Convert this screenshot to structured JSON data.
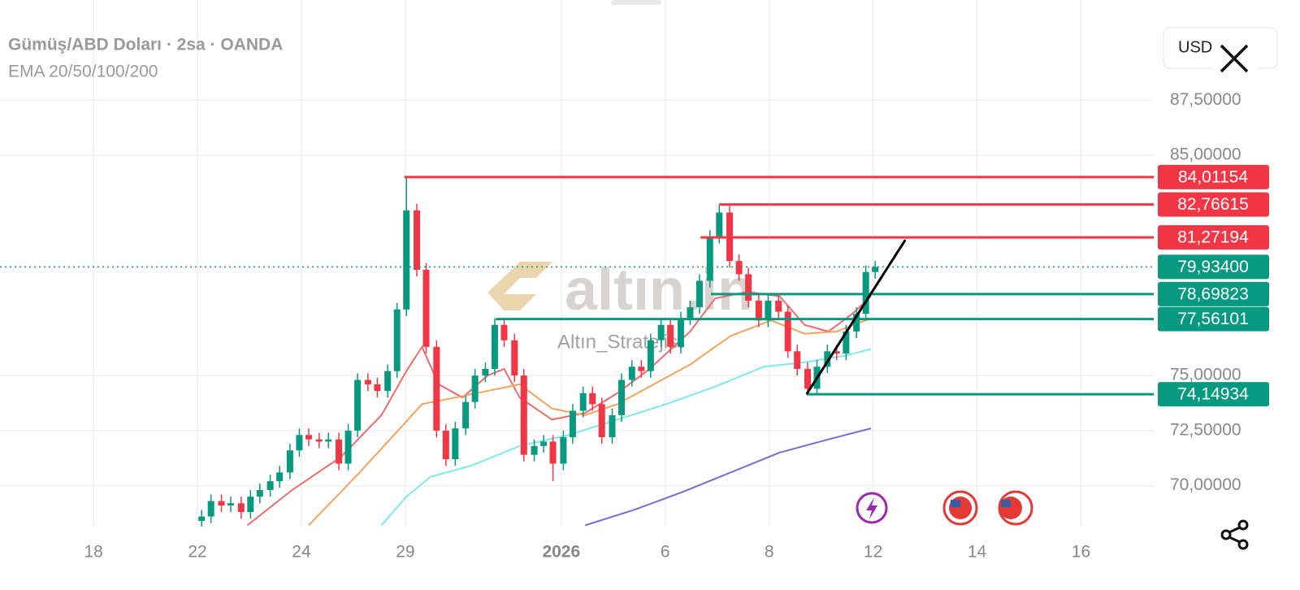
{
  "header": {
    "title": "Gümüş/ABD Doları · 2sa · OANDA",
    "indicators": "EMA 20/50/100/200",
    "currency_button": "USD"
  },
  "watermark": {
    "brand": "altın.in",
    "author": "Altın_Stratejist"
  },
  "chart_data": {
    "type": "candlestick",
    "xlim": [
      -0.9,
      10.2
    ],
    "ylim": [
      68.14,
      92.05
    ],
    "xticks": [
      {
        "value": 0,
        "label": "18"
      },
      {
        "value": 1,
        "label": "22"
      },
      {
        "value": 2,
        "label": "24"
      },
      {
        "value": 3,
        "label": "29"
      },
      {
        "value": 4.5,
        "label": "2026"
      },
      {
        "value": 5.5,
        "label": "6"
      },
      {
        "value": 6.5,
        "label": "8"
      },
      {
        "value": 7.5,
        "label": "12"
      },
      {
        "value": 8.5,
        "label": "14"
      },
      {
        "value": 9.5,
        "label": "16"
      }
    ],
    "yticks": [
      {
        "value": 70,
        "label": "70,00000"
      },
      {
        "value": 72.5,
        "label": "72,50000"
      },
      {
        "value": 75,
        "label": "75,00000"
      },
      {
        "value": 85,
        "label": "85,00000"
      },
      {
        "value": 87.5,
        "label": "87,50000"
      }
    ],
    "grid": true,
    "up_color": "#089981",
    "down_color": "#f23645",
    "x": [
      1.04,
      1.13,
      1.23,
      1.32,
      1.42,
      1.51,
      1.6,
      1.7,
      1.79,
      1.89,
      1.98,
      2.07,
      2.17,
      2.26,
      2.36,
      2.45,
      2.54,
      2.64,
      2.73,
      2.83,
      2.92,
      3.01,
      3.11,
      3.2,
      3.3,
      3.39,
      3.48,
      3.58,
      3.67,
      3.77,
      3.86,
      3.95,
      4.05,
      4.14,
      4.24,
      4.33,
      4.42,
      4.52,
      4.61,
      4.71,
      4.8,
      4.89,
      4.99,
      5.08,
      5.18,
      5.27,
      5.36,
      5.46,
      5.55,
      5.65,
      5.74,
      5.83,
      5.93,
      6.02,
      6.12,
      6.21,
      6.3,
      6.4,
      6.49,
      6.59,
      6.68,
      6.77,
      6.87,
      6.96,
      7.06,
      7.15,
      7.24,
      7.34,
      7.43,
      7.52
    ],
    "open": [
      68.4,
      68.6,
      69.3,
      69.1,
      69.2,
      68.8,
      69.5,
      69.8,
      70.2,
      70.6,
      71.6,
      72.3,
      72.1,
      72.0,
      72.1,
      71.0,
      72.5,
      74.8,
      74.6,
      74.3,
      75.2,
      78.0,
      82.5,
      79.8,
      76.3,
      72.5,
      71.2,
      72.6,
      73.8,
      75.0,
      75.3,
      77.3,
      76.6,
      75.0,
      71.4,
      71.8,
      72.0,
      71.0,
      72.2,
      73.4,
      74.2,
      73.7,
      72.2,
      73.2,
      74.8,
      75.4,
      75.2,
      76.6,
      77.3,
      76.3,
      77.6,
      78.1,
      79.3,
      81.3,
      82.4,
      80.2,
      79.6,
      78.4,
      77.5,
      78.4,
      77.9,
      76.1,
      75.3,
      74.4,
      75.4,
      76.1,
      76.0,
      77.0,
      77.8,
      79.7
    ],
    "high": [
      68.9,
      69.6,
      69.6,
      69.5,
      69.5,
      69.8,
      70.1,
      70.5,
      70.9,
      71.9,
      72.6,
      72.6,
      72.4,
      72.4,
      72.4,
      72.8,
      75.1,
      75.1,
      74.9,
      75.5,
      78.3,
      84.01,
      82.8,
      80.1,
      76.6,
      72.8,
      72.9,
      74.1,
      75.3,
      75.6,
      77.6,
      77.6,
      76.9,
      75.3,
      72.1,
      72.3,
      72.3,
      72.5,
      73.7,
      74.5,
      74.5,
      74.0,
      73.5,
      75.1,
      75.7,
      75.7,
      76.9,
      77.6,
      77.6,
      77.9,
      78.4,
      79.6,
      81.6,
      82.77,
      82.7,
      80.5,
      79.9,
      78.7,
      78.7,
      78.7,
      78.2,
      76.4,
      75.6,
      75.7,
      76.4,
      76.4,
      77.3,
      78.1,
      80.0,
      80.2
    ],
    "low": [
      68.1,
      68.3,
      68.8,
      68.8,
      68.5,
      68.5,
      69.2,
      69.5,
      69.9,
      70.3,
      71.3,
      71.8,
      71.7,
      71.7,
      70.7,
      70.7,
      72.2,
      74.3,
      74.0,
      74.0,
      74.9,
      77.7,
      79.5,
      76.0,
      72.2,
      70.9,
      70.9,
      72.3,
      73.5,
      74.7,
      75.0,
      76.3,
      74.7,
      71.1,
      71.1,
      71.5,
      70.2,
      70.7,
      71.9,
      73.1,
      73.4,
      71.9,
      71.9,
      72.9,
      74.5,
      74.9,
      74.9,
      76.3,
      76.0,
      76.0,
      77.3,
      77.8,
      79.0,
      81.0,
      79.9,
      79.3,
      78.1,
      77.2,
      77.2,
      77.6,
      75.8,
      75.0,
      74.15,
      74.2,
      75.1,
      75.7,
      75.7,
      76.7,
      77.5,
      79.4
    ],
    "close": [
      68.6,
      69.3,
      69.1,
      69.2,
      68.8,
      69.5,
      69.8,
      70.2,
      70.6,
      71.6,
      72.3,
      72.1,
      72.0,
      72.1,
      71.0,
      72.5,
      74.8,
      74.6,
      74.3,
      75.2,
      78.0,
      82.5,
      79.8,
      76.3,
      72.5,
      71.2,
      72.6,
      73.8,
      75.0,
      75.3,
      77.3,
      76.6,
      75.0,
      71.4,
      71.8,
      72.0,
      71.0,
      72.2,
      73.4,
      74.2,
      73.7,
      72.2,
      73.2,
      74.8,
      75.4,
      75.2,
      76.6,
      77.3,
      76.3,
      77.6,
      78.1,
      79.3,
      81.3,
      82.4,
      80.2,
      79.6,
      78.4,
      77.5,
      78.4,
      77.9,
      76.1,
      75.3,
      74.4,
      75.4,
      76.1,
      76.0,
      77.0,
      77.8,
      79.7,
      79.93
    ],
    "lines": [
      {
        "color": "#ef6c6c",
        "x": [
          1.48,
          1.91,
          2.38,
          2.77,
          3.01,
          3.16,
          3.32,
          3.55,
          3.79,
          3.95,
          4.1,
          4.41,
          4.73,
          5.04,
          5.35,
          5.74,
          5.98,
          6.29,
          6.6,
          6.84,
          7.07,
          7.3,
          7.48
        ],
        "values": [
          68.2,
          69.8,
          71.3,
          73.2,
          75.2,
          76.3,
          74.6,
          74.0,
          75.0,
          75.3,
          74.0,
          73.0,
          73.3,
          74.2,
          75.3,
          77.0,
          78.5,
          78.8,
          78.6,
          77.3,
          77.0,
          77.8,
          78.6
        ]
      },
      {
        "color": "#f5a35c",
        "x": [
          2.07,
          2.54,
          2.93,
          3.16,
          3.48,
          3.79,
          4.1,
          4.41,
          4.73,
          5.04,
          5.35,
          5.74,
          6.13,
          6.52,
          6.84,
          7.15,
          7.48
        ],
        "values": [
          68.2,
          70.5,
          72.5,
          73.7,
          74.0,
          74.3,
          74.6,
          73.5,
          73.2,
          73.7,
          74.5,
          75.5,
          76.8,
          77.5,
          76.9,
          77.0,
          77.6
        ]
      },
      {
        "color": "#7ee8f0",
        "x": [
          2.77,
          3.01,
          3.24,
          3.63,
          4.1,
          4.57,
          5.04,
          5.51,
          5.98,
          6.45,
          6.84,
          7.23,
          7.48
        ],
        "values": [
          68.2,
          69.5,
          70.4,
          70.9,
          71.8,
          72.3,
          73.0,
          73.7,
          74.5,
          75.4,
          75.6,
          75.9,
          76.2
        ]
      },
      {
        "color": "#7b6bd8",
        "x": [
          4.73,
          5.2,
          5.66,
          6.13,
          6.6,
          7.07,
          7.48
        ],
        "values": [
          68.2,
          68.9,
          69.7,
          70.6,
          71.5,
          72.1,
          72.6
        ]
      }
    ],
    "levels": [
      {
        "value": 84.01154,
        "label": "84,01154",
        "color": "#f23645",
        "start": 2.99
      },
      {
        "value": 82.76615,
        "label": "82,76615",
        "color": "#f23645",
        "start": 6.02
      },
      {
        "value": 81.27194,
        "label": "81,27194",
        "color": "#f23645",
        "start": 5.84
      },
      {
        "value": 79.934,
        "label": "79,93400",
        "color": "#089981",
        "start": -0.9,
        "dotted": true
      },
      {
        "value": 78.69823,
        "label": "78,69823",
        "color": "#089981",
        "start": 5.94
      },
      {
        "value": 77.56101,
        "label": "77,56101",
        "color": "#089981",
        "start": 3.87
      },
      {
        "value": 74.14934,
        "label": "74,14934",
        "color": "#089981",
        "start": 6.86
      }
    ],
    "trendline": {
      "x": [
        6.86,
        7.81
      ],
      "values": [
        74.15,
        81.16
      ],
      "color": "#000000"
    }
  }
}
